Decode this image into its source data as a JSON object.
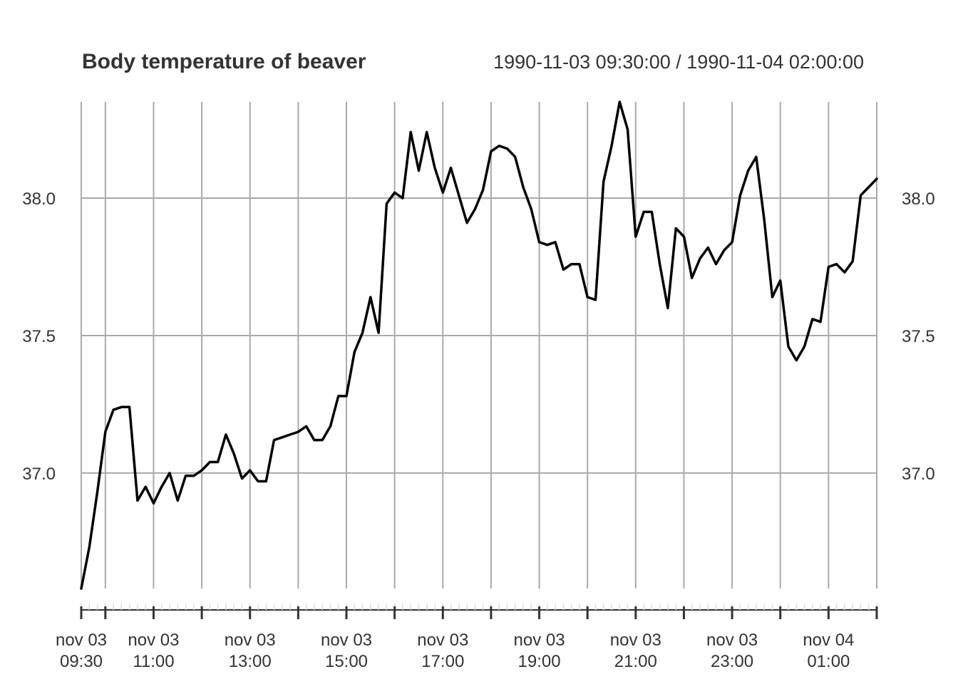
{
  "chart_data": {
    "type": "line",
    "title": "Body temperature of beaver",
    "range_label": "1990-11-03 09:30:00 / 1990-11-04 02:00:00",
    "x_start": "1990-11-03 09:30",
    "x_end": "1990-11-04 02:00",
    "x_ticks": [
      {
        "date": "1990-11-03 09:30",
        "line1": "nov 03",
        "line2": "09:30"
      },
      {
        "date": "1990-11-03 11:00",
        "line1": "nov 03",
        "line2": "11:00"
      },
      {
        "date": "1990-11-03 13:00",
        "line1": "nov 03",
        "line2": "13:00"
      },
      {
        "date": "1990-11-03 15:00",
        "line1": "nov 03",
        "line2": "15:00"
      },
      {
        "date": "1990-11-03 17:00",
        "line1": "nov 03",
        "line2": "17:00"
      },
      {
        "date": "1990-11-03 19:00",
        "line1": "nov 03",
        "line2": "19:00"
      },
      {
        "date": "1990-11-03 21:00",
        "line1": "nov 03",
        "line2": "21:00"
      },
      {
        "date": "1990-11-03 23:00",
        "line1": "nov 03",
        "line2": "23:00"
      },
      {
        "date": "1990-11-04 01:00",
        "line1": "nov 04",
        "line2": "01:00"
      }
    ],
    "grid_x": [
      "1990-11-03 09:30",
      "1990-11-03 10:00",
      "1990-11-03 11:00",
      "1990-11-03 12:00",
      "1990-11-03 13:00",
      "1990-11-03 14:00",
      "1990-11-03 15:00",
      "1990-11-03 16:00",
      "1990-11-03 17:00",
      "1990-11-03 18:00",
      "1990-11-03 19:00",
      "1990-11-03 20:00",
      "1990-11-03 21:00",
      "1990-11-03 22:00",
      "1990-11-03 23:00",
      "1990-11-04 00:00",
      "1990-11-04 01:00",
      "1990-11-04 02:00"
    ],
    "y_ticks": [
      37.0,
      37.5,
      38.0
    ],
    "y_tick_labels": [
      "37.0",
      "37.5",
      "38.0"
    ],
    "ylim": [
      36.58,
      38.35
    ],
    "grid": true,
    "color": "#000000",
    "series": [
      {
        "x": [
          "1990-11-03 09:30",
          "1990-11-03 09:40",
          "1990-11-03 09:50",
          "1990-11-03 10:00",
          "1990-11-03 10:10",
          "1990-11-03 10:20",
          "1990-11-03 10:30",
          "1990-11-03 10:40",
          "1990-11-03 10:50",
          "1990-11-03 11:00",
          "1990-11-03 11:10",
          "1990-11-03 11:20",
          "1990-11-03 11:30",
          "1990-11-03 11:40",
          "1990-11-03 11:50",
          "1990-11-03 12:00",
          "1990-11-03 12:10",
          "1990-11-03 12:20",
          "1990-11-03 12:30",
          "1990-11-03 12:40",
          "1990-11-03 12:50",
          "1990-11-03 13:00",
          "1990-11-03 13:10",
          "1990-11-03 13:20",
          "1990-11-03 13:30",
          "1990-11-03 13:40",
          "1990-11-03 13:50",
          "1990-11-03 14:00",
          "1990-11-03 14:10",
          "1990-11-03 14:20",
          "1990-11-03 14:30",
          "1990-11-03 14:40",
          "1990-11-03 14:50",
          "1990-11-03 15:00",
          "1990-11-03 15:10",
          "1990-11-03 15:20",
          "1990-11-03 15:30",
          "1990-11-03 15:40",
          "1990-11-03 15:50",
          "1990-11-03 16:00",
          "1990-11-03 16:10",
          "1990-11-03 16:20",
          "1990-11-03 16:30",
          "1990-11-03 16:40",
          "1990-11-03 16:50",
          "1990-11-03 17:00",
          "1990-11-03 17:10",
          "1990-11-03 17:20",
          "1990-11-03 17:30",
          "1990-11-03 17:40",
          "1990-11-03 17:50",
          "1990-11-03 18:00",
          "1990-11-03 18:10",
          "1990-11-03 18:20",
          "1990-11-03 18:30",
          "1990-11-03 18:40",
          "1990-11-03 18:50",
          "1990-11-03 19:00",
          "1990-11-03 19:10",
          "1990-11-03 19:20",
          "1990-11-03 19:30",
          "1990-11-03 19:40",
          "1990-11-03 19:50",
          "1990-11-03 20:00",
          "1990-11-03 20:10",
          "1990-11-03 20:20",
          "1990-11-03 20:30",
          "1990-11-03 20:40",
          "1990-11-03 20:50",
          "1990-11-03 21:00",
          "1990-11-03 21:10",
          "1990-11-03 21:20",
          "1990-11-03 21:30",
          "1990-11-03 21:40",
          "1990-11-03 21:50",
          "1990-11-03 22:00",
          "1990-11-03 22:10",
          "1990-11-03 22:20",
          "1990-11-03 22:30",
          "1990-11-03 22:40",
          "1990-11-03 22:50",
          "1990-11-03 23:00",
          "1990-11-03 23:10",
          "1990-11-03 23:20",
          "1990-11-03 23:30",
          "1990-11-03 23:40",
          "1990-11-03 23:50",
          "1990-11-04 00:00",
          "1990-11-04 00:10",
          "1990-11-04 00:20",
          "1990-11-04 00:30",
          "1990-11-04 00:40",
          "1990-11-04 00:50",
          "1990-11-04 01:00",
          "1990-11-04 01:10",
          "1990-11-04 01:20",
          "1990-11-04 01:30",
          "1990-11-04 01:40",
          "1990-11-04 01:50",
          "1990-11-04 02:00"
        ],
        "y": [
          36.58,
          36.73,
          36.93,
          37.15,
          37.23,
          37.24,
          37.24,
          36.9,
          36.95,
          36.89,
          36.95,
          37.0,
          36.9,
          36.99,
          36.99,
          37.01,
          37.04,
          37.04,
          37.14,
          37.07,
          36.98,
          37.01,
          36.97,
          36.97,
          37.12,
          37.13,
          37.14,
          37.15,
          37.17,
          37.12,
          37.12,
          37.17,
          37.28,
          37.28,
          37.44,
          37.51,
          37.64,
          37.51,
          37.98,
          38.02,
          38.0,
          38.24,
          38.1,
          38.24,
          38.11,
          38.02,
          38.11,
          38.01,
          37.91,
          37.96,
          38.03,
          38.17,
          38.19,
          38.18,
          38.15,
          38.04,
          37.96,
          37.84,
          37.83,
          37.84,
          37.74,
          37.76,
          37.76,
          37.64,
          37.63,
          38.06,
          38.19,
          38.35,
          38.25,
          37.86,
          37.95,
          37.95,
          37.76,
          37.6,
          37.89,
          37.86,
          37.71,
          37.78,
          37.82,
          37.76,
          37.81,
          37.84,
          38.01,
          38.1,
          38.15,
          37.92,
          37.64,
          37.7,
          37.46,
          37.41,
          37.46,
          37.56,
          37.55,
          37.75,
          37.76,
          37.73,
          37.77,
          38.01,
          38.04,
          38.07
        ]
      }
    ]
  }
}
